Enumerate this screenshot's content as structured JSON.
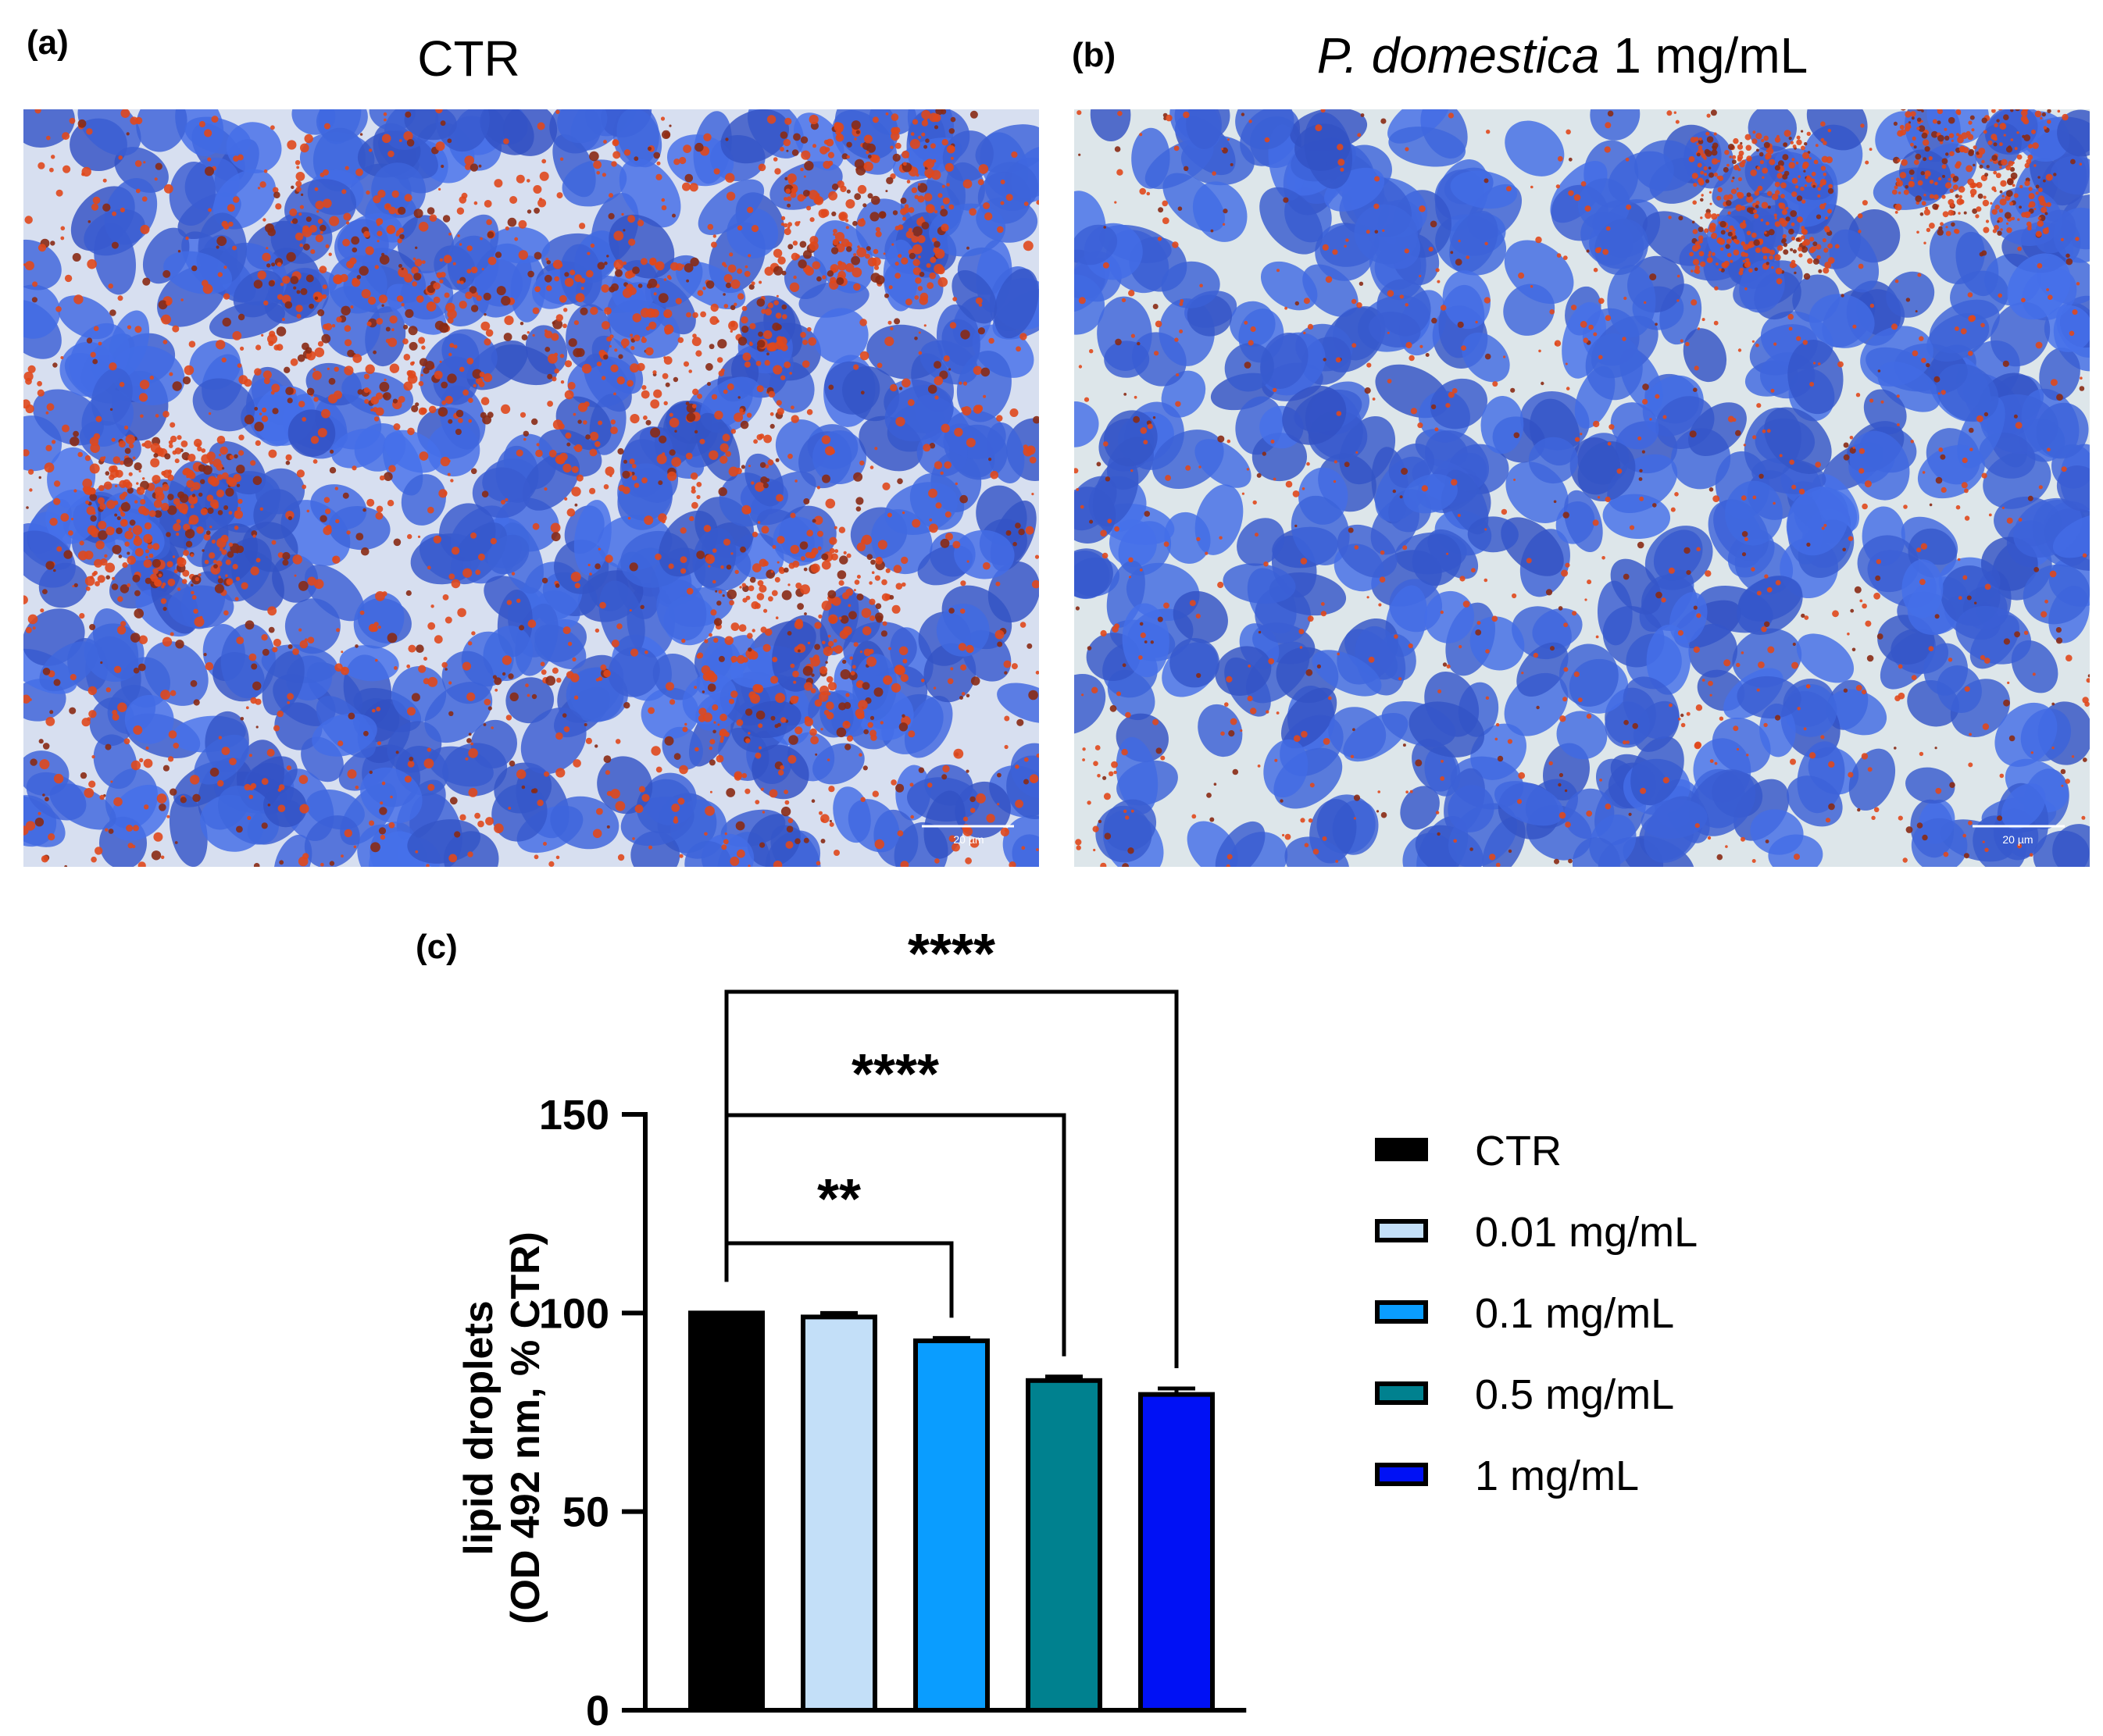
{
  "panels": {
    "a": {
      "label": "(a)",
      "title": "CTR",
      "scale_bar": "20 µm"
    },
    "b": {
      "label": "(b)",
      "title_italic": "P. domestica",
      "title_rest": " 1 mg/mL",
      "scale_bar": "20 µm"
    },
    "c": {
      "label": "(c)"
    }
  },
  "colors": {
    "nucleus": "#4a78c4",
    "background_a": "#d7dff0",
    "background_b": "#dde6ea",
    "lipid": "#e0481c"
  },
  "chart_data": {
    "type": "bar",
    "categories": [
      "CTR",
      "0.01 mg/mL",
      "0.1 mg/mL",
      "0.5 mg/mL",
      "1 mg/mL"
    ],
    "values": [
      100,
      99,
      93,
      83,
      79.5
    ],
    "errors": [
      0,
      1,
      0.7,
      1,
      1.5
    ],
    "colors": [
      "#000000",
      "#c3dff8",
      "#0a9dff",
      "#00818f",
      "#0011f5"
    ],
    "ylabel_line1": "lipid droplets",
    "ylabel_line2": "(OD 492 nm, % CTR)",
    "ylim": [
      0,
      150
    ],
    "yticks": [
      "0",
      "50",
      "100",
      "150"
    ],
    "legend_position": "right",
    "significance": [
      {
        "from": "CTR",
        "to": "0.1 mg/mL",
        "label": "**"
      },
      {
        "from": "CTR",
        "to": "0.5 mg/mL",
        "label": "****"
      },
      {
        "from": "CTR",
        "to": "1 mg/mL",
        "label": "****"
      }
    ]
  }
}
